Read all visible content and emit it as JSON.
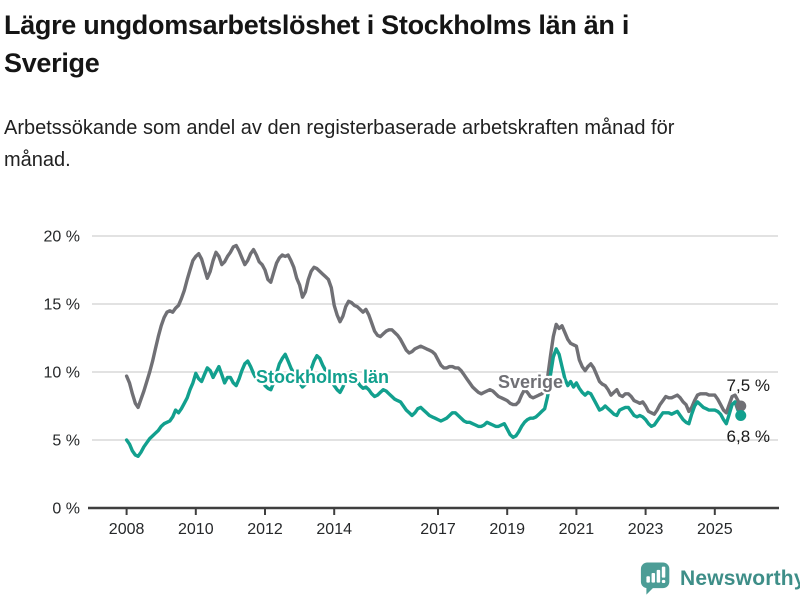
{
  "header": {
    "title": "Lägre ungdomsarbetslöshet i Stockholms län än i Sverige",
    "subtitle": "Arbetssökande som andel av den registerbaserade arbetskraften månad för månad."
  },
  "footer": {
    "brand": "Newsworthy"
  },
  "colors": {
    "stockholm": "#12A08E",
    "sverige": "#707075",
    "grid": "#D8D8D8",
    "axis": "#3F3F3F",
    "tick_text": "#26282A",
    "end_label_text": "#1A1A1A",
    "brand_icon": "#4C9D96",
    "brand_text": "#3E8E88"
  },
  "chart_data": {
    "type": "line",
    "title": "Lägre ungdomsarbetslöshet i Stockholms län än i Sverige",
    "subtitle": "Arbetssökande som andel av den registerbaserade arbetskraften månad för månad.",
    "xlabel": "",
    "ylabel": "",
    "x_start_year": 2008,
    "x_step_months": 1,
    "xlim": [
      2006.9,
      2026.9
    ],
    "ylim": [
      0,
      21
    ],
    "grid": "horizontal",
    "legend_position": "inline-labels",
    "y_ticks": [
      {
        "value": 0,
        "label": "0 %"
      },
      {
        "value": 5,
        "label": "5 %"
      },
      {
        "value": 10,
        "label": "10 %"
      },
      {
        "value": 15,
        "label": "15 %"
      },
      {
        "value": 20,
        "label": "20 %"
      }
    ],
    "x_ticks": [
      {
        "year": 2008,
        "label": "2008"
      },
      {
        "year": 2010,
        "label": "2010"
      },
      {
        "year": 2012,
        "label": "2012"
      },
      {
        "year": 2014,
        "label": "2014"
      },
      {
        "year": 2017,
        "label": "2017"
      },
      {
        "year": 2019,
        "label": "2019"
      },
      {
        "year": 2021,
        "label": "2021"
      },
      {
        "year": 2023,
        "label": "2023"
      },
      {
        "year": 2025,
        "label": "2025"
      }
    ],
    "series": [
      {
        "name": "Sverige",
        "color": "#707075",
        "end_label": "7,5 %",
        "values": [
          9.7,
          9.2,
          8.4,
          7.7,
          7.4,
          8.0,
          8.6,
          9.3,
          10.0,
          10.8,
          11.7,
          12.6,
          13.4,
          14.0,
          14.4,
          14.5,
          14.4,
          14.7,
          14.9,
          15.4,
          16.0,
          16.8,
          17.5,
          18.2,
          18.5,
          18.7,
          18.3,
          17.6,
          16.9,
          17.4,
          18.2,
          18.8,
          18.5,
          17.9,
          18.1,
          18.5,
          18.8,
          19.2,
          19.3,
          18.9,
          18.4,
          17.9,
          18.2,
          18.7,
          19.0,
          18.6,
          18.1,
          17.9,
          17.5,
          16.8,
          16.6,
          17.3,
          18.0,
          18.4,
          18.6,
          18.5,
          18.6,
          18.2,
          17.7,
          16.9,
          16.4,
          15.5,
          15.9,
          16.8,
          17.4,
          17.7,
          17.6,
          17.4,
          17.2,
          17.0,
          16.8,
          16.2,
          14.9,
          14.2,
          13.7,
          14.1,
          14.8,
          15.2,
          15.1,
          14.9,
          14.8,
          14.6,
          14.4,
          14.6,
          14.2,
          13.6,
          13.0,
          12.7,
          12.6,
          12.8,
          13.0,
          13.1,
          13.1,
          12.9,
          12.7,
          12.4,
          12.0,
          11.6,
          11.4,
          11.5,
          11.7,
          11.8,
          11.9,
          11.8,
          11.7,
          11.6,
          11.5,
          11.3,
          10.9,
          10.5,
          10.3,
          10.3,
          10.4,
          10.4,
          10.3,
          10.3,
          10.1,
          9.8,
          9.5,
          9.2,
          8.9,
          8.7,
          8.5,
          8.4,
          8.5,
          8.6,
          8.7,
          8.6,
          8.4,
          8.2,
          8.1,
          8.0,
          7.9,
          7.7,
          7.6,
          7.6,
          7.8,
          8.3,
          8.7,
          8.5,
          8.2,
          8.1,
          8.2,
          8.3,
          8.4,
          8.6,
          9.6,
          11.2,
          12.6,
          13.5,
          13.2,
          13.4,
          12.9,
          12.4,
          12.1,
          12.0,
          11.9,
          10.9,
          10.4,
          10.1,
          10.4,
          10.6,
          10.3,
          9.8,
          9.3,
          9.1,
          9.0,
          8.7,
          8.3,
          8.5,
          8.7,
          8.3,
          8.2,
          8.4,
          8.4,
          8.2,
          7.9,
          7.8,
          7.7,
          7.8,
          7.5,
          7.1,
          7.0,
          6.9,
          7.2,
          7.6,
          7.9,
          8.2,
          8.1,
          8.1,
          8.2,
          8.3,
          8.1,
          7.8,
          7.6,
          7.1,
          7.4,
          7.9,
          8.3,
          8.4,
          8.4,
          8.4,
          8.3,
          8.3,
          8.3,
          8.0,
          7.6,
          7.2,
          7.0,
          7.6,
          8.2,
          8.3,
          7.9,
          7.5
        ]
      },
      {
        "name": "Stockholms län",
        "color": "#12A08E",
        "end_label": "6,8 %",
        "values": [
          5.0,
          4.7,
          4.2,
          3.9,
          3.8,
          4.1,
          4.5,
          4.8,
          5.1,
          5.3,
          5.5,
          5.7,
          6.0,
          6.2,
          6.3,
          6.4,
          6.7,
          7.2,
          7.0,
          7.3,
          7.7,
          8.1,
          8.7,
          9.2,
          9.9,
          9.5,
          9.3,
          9.8,
          10.3,
          10.1,
          9.6,
          10.0,
          10.4,
          9.8,
          9.2,
          9.6,
          9.6,
          9.2,
          9.0,
          9.5,
          10.1,
          10.6,
          10.8,
          10.4,
          9.9,
          9.5,
          9.2,
          9.4,
          9.0,
          8.8,
          8.7,
          9.2,
          9.9,
          10.6,
          11.0,
          11.3,
          10.8,
          10.3,
          9.9,
          9.5,
          9.2,
          8.9,
          9.1,
          9.6,
          10.2,
          10.8,
          11.2,
          11.0,
          10.5,
          10.1,
          9.8,
          9.4,
          9.0,
          8.7,
          8.5,
          8.9,
          9.4,
          9.8,
          10.0,
          9.7,
          9.3,
          9.0,
          8.8,
          8.9,
          8.7,
          8.4,
          8.2,
          8.3,
          8.5,
          8.7,
          8.6,
          8.4,
          8.2,
          8.0,
          7.9,
          7.8,
          7.5,
          7.2,
          7.0,
          6.8,
          7.0,
          7.3,
          7.4,
          7.2,
          7.0,
          6.8,
          6.7,
          6.6,
          6.5,
          6.4,
          6.5,
          6.6,
          6.8,
          7.0,
          7.0,
          6.8,
          6.6,
          6.4,
          6.3,
          6.3,
          6.2,
          6.1,
          6.0,
          6.0,
          6.1,
          6.3,
          6.2,
          6.1,
          6.0,
          6.0,
          6.1,
          6.2,
          5.8,
          5.4,
          5.2,
          5.3,
          5.6,
          6.0,
          6.3,
          6.5,
          6.6,
          6.6,
          6.7,
          6.9,
          7.1,
          7.3,
          8.2,
          9.8,
          11.1,
          11.7,
          11.3,
          10.4,
          9.5,
          9.0,
          9.3,
          8.9,
          9.2,
          8.8,
          8.5,
          8.3,
          8.5,
          8.4,
          8.0,
          7.6,
          7.2,
          7.3,
          7.5,
          7.3,
          7.1,
          6.9,
          6.8,
          7.2,
          7.3,
          7.4,
          7.4,
          7.1,
          6.8,
          6.7,
          6.8,
          6.7,
          6.5,
          6.2,
          6.0,
          6.1,
          6.4,
          6.7,
          7.0,
          7.0,
          7.0,
          6.9,
          7.0,
          7.1,
          6.8,
          6.5,
          6.3,
          6.2,
          6.9,
          7.5,
          7.8,
          7.6,
          7.4,
          7.3,
          7.2,
          7.2,
          7.2,
          7.1,
          6.9,
          6.5,
          6.2,
          6.9,
          7.6,
          7.8,
          7.2,
          6.8
        ]
      }
    ],
    "annotations": [
      {
        "text": "Stockholms län",
        "color": "#12A08E"
      },
      {
        "text": "Sverige",
        "color": "#707075"
      },
      {
        "text": "7,5 %"
      },
      {
        "text": "6,8 %"
      }
    ]
  }
}
